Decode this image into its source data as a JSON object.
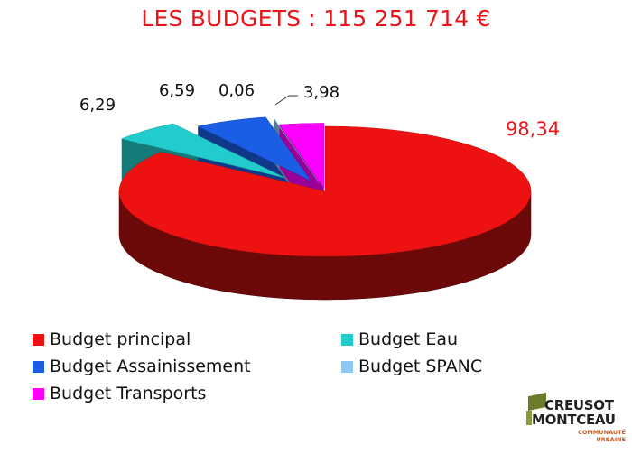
{
  "chart_data": {
    "type": "pie",
    "title": "LES BUDGETS : 115 251 714 €",
    "values": [
      98.34,
      6.29,
      6.59,
      0.06,
      3.98
    ],
    "data_labels": [
      "98,34",
      "6,29",
      "6,59",
      "0,06",
      "3,98"
    ],
    "categories": [
      "Budget principal",
      "Budget Eau",
      "Budget Assainissement",
      "Budget SPANC",
      "Budget Transports"
    ],
    "colors": [
      "#ee1111",
      "#22cccc",
      "#1a5ee6",
      "#8fc8f2",
      "#ff00ff"
    ],
    "label_colors": [
      "#e8161a",
      "#111111",
      "#111111",
      "#111111",
      "#111111"
    ],
    "three_d": true,
    "legend": "bottom"
  },
  "logo": {
    "line1": "CREUSOT",
    "line2": "MONTCEAU",
    "line3": "COMMUNAUTÉ URBAINE"
  }
}
